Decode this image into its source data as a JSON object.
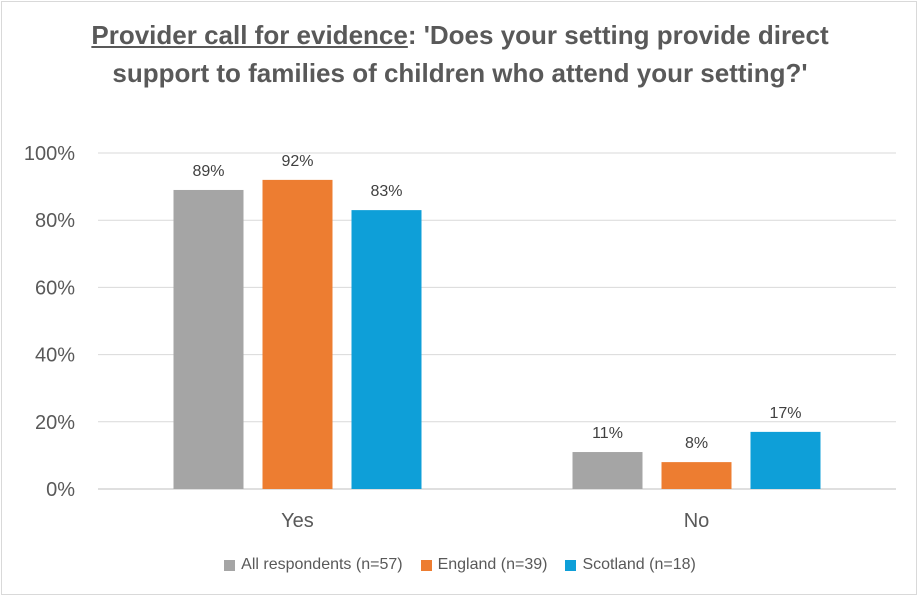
{
  "title": {
    "underlined": "Provider call for evidence",
    "rest": ": 'Does your setting provide direct support to families of children who attend your setting?'"
  },
  "chart_data": {
    "type": "bar",
    "categories": [
      "Yes",
      "No"
    ],
    "series": [
      {
        "name": "All respondents (n=57)",
        "values": [
          89,
          11
        ],
        "labels": [
          "89%",
          "11%"
        ],
        "color": "#a5a5a5"
      },
      {
        "name": "England (n=39)",
        "values": [
          92,
          8
        ],
        "labels": [
          "92%",
          "8%"
        ],
        "color": "#ed7d31"
      },
      {
        "name": "Scotland (n=18)",
        "values": [
          83,
          17
        ],
        "labels": [
          "83%",
          "17%"
        ],
        "color": "#0e9fd8"
      }
    ],
    "ylim": [
      0,
      100
    ],
    "yticks": [
      "0%",
      "20%",
      "40%",
      "60%",
      "80%",
      "100%"
    ],
    "grid": true,
    "legend": "bottom"
  }
}
